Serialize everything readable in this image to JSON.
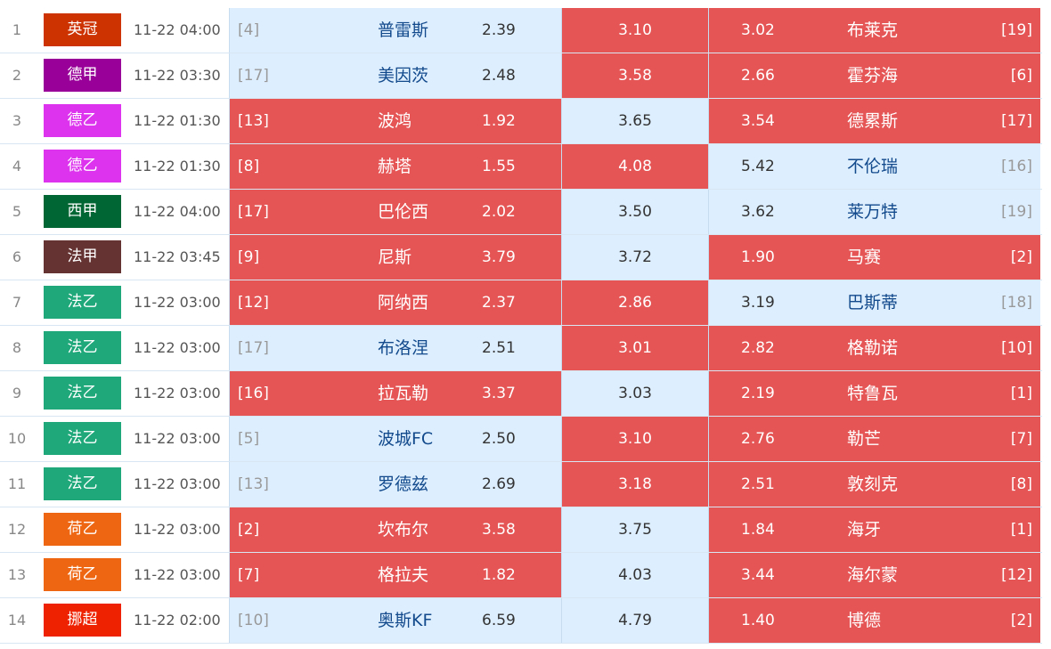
{
  "colors": {
    "highlight": "#e55555",
    "normal": "#ddeeff"
  },
  "rows": [
    {
      "no": "1",
      "league": "英冠",
      "lc": "#cc3300",
      "time": "11-22 04:00",
      "hr": "[4]",
      "home": "普雷斯",
      "ho": "2.39",
      "d": "3.10",
      "ao": "3.02",
      "away": "布莱克",
      "ar": "[19]",
      "hl": [
        0,
        1,
        1
      ]
    },
    {
      "no": "2",
      "league": "德甲",
      "lc": "#990099",
      "time": "11-22 03:30",
      "hr": "[17]",
      "home": "美因茨",
      "ho": "2.48",
      "d": "3.58",
      "ao": "2.66",
      "away": "霍芬海",
      "ar": "[6]",
      "hl": [
        0,
        1,
        1
      ]
    },
    {
      "no": "3",
      "league": "德乙",
      "lc": "#dd33ee",
      "time": "11-22 01:30",
      "hr": "[13]",
      "home": "波鸿",
      "ho": "1.92",
      "d": "3.65",
      "ao": "3.54",
      "away": "德累斯",
      "ar": "[17]",
      "hl": [
        1,
        0,
        1
      ]
    },
    {
      "no": "4",
      "league": "德乙",
      "lc": "#dd33ee",
      "time": "11-22 01:30",
      "hr": "[8]",
      "home": "赫塔",
      "ho": "1.55",
      "d": "4.08",
      "ao": "5.42",
      "away": "不伦瑞",
      "ar": "[16]",
      "hl": [
        1,
        1,
        0
      ]
    },
    {
      "no": "5",
      "league": "西甲",
      "lc": "#006633",
      "time": "11-22 04:00",
      "hr": "[17]",
      "home": "巴伦西",
      "ho": "2.02",
      "d": "3.50",
      "ao": "3.62",
      "away": "莱万特",
      "ar": "[19]",
      "hl": [
        1,
        0,
        0
      ]
    },
    {
      "no": "6",
      "league": "法甲",
      "lc": "#663333",
      "time": "11-22 03:45",
      "hr": "[9]",
      "home": "尼斯",
      "ho": "3.79",
      "d": "3.72",
      "ao": "1.90",
      "away": "马赛",
      "ar": "[2]",
      "hl": [
        1,
        0,
        1
      ]
    },
    {
      "no": "7",
      "league": "法乙",
      "lc": "#1fa87a",
      "time": "11-22 03:00",
      "hr": "[12]",
      "home": "阿纳西",
      "ho": "2.37",
      "d": "2.86",
      "ao": "3.19",
      "away": "巴斯蒂",
      "ar": "[18]",
      "hl": [
        1,
        1,
        0
      ]
    },
    {
      "no": "8",
      "league": "法乙",
      "lc": "#1fa87a",
      "time": "11-22 03:00",
      "hr": "[17]",
      "home": "布洛涅",
      "ho": "2.51",
      "d": "3.01",
      "ao": "2.82",
      "away": "格勒诺",
      "ar": "[10]",
      "hl": [
        0,
        1,
        1
      ]
    },
    {
      "no": "9",
      "league": "法乙",
      "lc": "#1fa87a",
      "time": "11-22 03:00",
      "hr": "[16]",
      "home": "拉瓦勒",
      "ho": "3.37",
      "d": "3.03",
      "ao": "2.19",
      "away": "特鲁瓦",
      "ar": "[1]",
      "hl": [
        1,
        0,
        1
      ]
    },
    {
      "no": "10",
      "league": "法乙",
      "lc": "#1fa87a",
      "time": "11-22 03:00",
      "hr": "[5]",
      "home": "波城FC",
      "ho": "2.50",
      "d": "3.10",
      "ao": "2.76",
      "away": "勒芒",
      "ar": "[7]",
      "hl": [
        0,
        1,
        1
      ]
    },
    {
      "no": "11",
      "league": "法乙",
      "lc": "#1fa87a",
      "time": "11-22 03:00",
      "hr": "[13]",
      "home": "罗德兹",
      "ho": "2.69",
      "d": "3.18",
      "ao": "2.51",
      "away": "敦刻克",
      "ar": "[8]",
      "hl": [
        0,
        1,
        1
      ]
    },
    {
      "no": "12",
      "league": "荷乙",
      "lc": "#ee6611",
      "time": "11-22 03:00",
      "hr": "[2]",
      "home": "坎布尔",
      "ho": "3.58",
      "d": "3.75",
      "ao": "1.84",
      "away": "海牙",
      "ar": "[1]",
      "hl": [
        1,
        0,
        1
      ]
    },
    {
      "no": "13",
      "league": "荷乙",
      "lc": "#ee6611",
      "time": "11-22 03:00",
      "hr": "[7]",
      "home": "格拉夫",
      "ho": "1.82",
      "d": "4.03",
      "ao": "3.44",
      "away": "海尔蒙",
      "ar": "[12]",
      "hl": [
        1,
        0,
        1
      ]
    },
    {
      "no": "14",
      "league": "挪超",
      "lc": "#ee2200",
      "time": "11-22 02:00",
      "hr": "[10]",
      "home": "奥斯KF",
      "ho": "6.59",
      "d": "4.79",
      "ao": "1.40",
      "away": "博德",
      "ar": "[2]",
      "hl": [
        0,
        0,
        1
      ]
    }
  ]
}
